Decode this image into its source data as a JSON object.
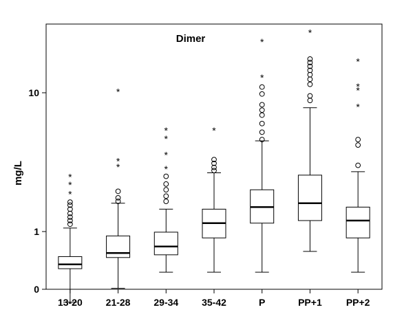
{
  "chart_data": {
    "type": "boxplot",
    "title": "Dimer",
    "xlabel": "",
    "ylabel": "mg/L",
    "y_scale": "log",
    "y_ticks": [
      {
        "value": 0,
        "label": "0"
      },
      {
        "value": 1,
        "label": "1"
      },
      {
        "value": 10,
        "label": "10"
      }
    ],
    "grid": false,
    "shaded_band": {
      "from": 0,
      "to": 0.3,
      "color": "#dcdcdc"
    },
    "categories": [
      "13-20",
      "21-28",
      "29-34",
      "35-42",
      "P",
      "PP+1",
      "PP+2"
    ],
    "boxes": [
      {
        "min": 0.31,
        "q1": 0.54,
        "median": 0.58,
        "q3": 0.66,
        "max": 1.06,
        "outliers": [
          1.13,
          1.2,
          1.27,
          1.35,
          1.45,
          1.55,
          1.63
        ],
        "extremes": [
          1.88,
          2.2,
          2.5
        ]
      },
      {
        "min": 0.39,
        "q1": 0.65,
        "median": 0.7,
        "q3": 0.93,
        "max": 1.6,
        "outliers": [
          1.65,
          1.75,
          1.95
        ],
        "extremes": [
          2.95,
          3.25,
          10.3
        ]
      },
      {
        "min": 0.51,
        "q1": 0.68,
        "median": 0.78,
        "q3": 0.99,
        "max": 1.45,
        "outliers": [
          1.65,
          1.8,
          2.0,
          2.2,
          2.5
        ],
        "extremes": [
          2.85,
          3.6,
          4.7,
          5.4
        ]
      },
      {
        "min": 0.51,
        "q1": 0.9,
        "median": 1.15,
        "q3": 1.45,
        "max": 2.65,
        "outliers": [
          2.75,
          2.9,
          3.1,
          3.3
        ],
        "extremes": [
          5.4
        ]
      },
      {
        "min": 0.51,
        "q1": 1.15,
        "median": 1.5,
        "q3": 2.0,
        "max": 4.5,
        "outliers": [
          4.6,
          5.2,
          6.0,
          6.9,
          7.5,
          8.2,
          9.8,
          11.0
        ],
        "extremes": [
          13.0,
          23.5
        ]
      },
      {
        "min": 0.72,
        "q1": 1.2,
        "median": 1.6,
        "q3": 2.55,
        "max": 7.8,
        "outliers": [
          8.8,
          9.5,
          11.5,
          12.5,
          13.5,
          14.5,
          15.5,
          16.5,
          17.5
        ],
        "extremes": [
          27.5
        ]
      },
      {
        "min": 0.51,
        "q1": 0.9,
        "median": 1.2,
        "q3": 1.5,
        "max": 2.7,
        "outliers": [
          3.0,
          4.2,
          4.6
        ],
        "extremes": [
          8.0,
          10.5,
          11.2,
          17.0
        ]
      }
    ]
  }
}
